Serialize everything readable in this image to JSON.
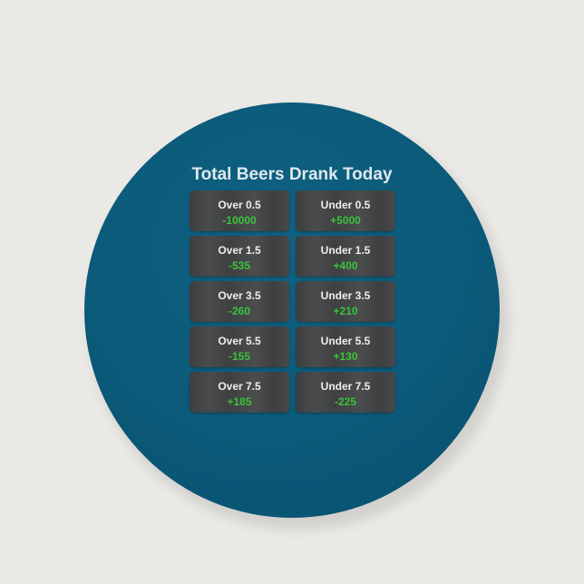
{
  "title": "Total Beers Drank Today",
  "colors": {
    "background": "#ebe9e5",
    "button": "#0b5a79",
    "tile": "#444547",
    "odds": "#3ac43a"
  },
  "rows": [
    {
      "over": {
        "label": "Over 0.5",
        "odds": "-10000"
      },
      "under": {
        "label": "Under 0.5",
        "odds": "+5000"
      }
    },
    {
      "over": {
        "label": "Over 1.5",
        "odds": "-535"
      },
      "under": {
        "label": "Under 1.5",
        "odds": "+400"
      }
    },
    {
      "over": {
        "label": "Over 3.5",
        "odds": "-260"
      },
      "under": {
        "label": "Under 3.5",
        "odds": "+210"
      }
    },
    {
      "over": {
        "label": "Over 5.5",
        "odds": "-155"
      },
      "under": {
        "label": "Under 5.5",
        "odds": "+130"
      }
    },
    {
      "over": {
        "label": "Over 7.5",
        "odds": "+185"
      },
      "under": {
        "label": "Under 7.5",
        "odds": "-225"
      }
    }
  ]
}
